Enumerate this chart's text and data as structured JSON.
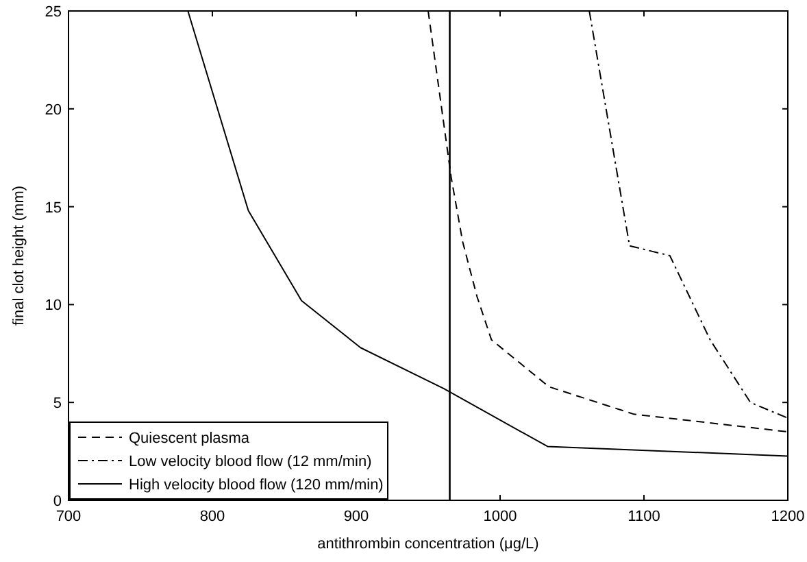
{
  "chart_data": {
    "type": "line",
    "xlabel": "antithrombin concentration (μg/L)",
    "ylabel": "final clot height (mm)",
    "xlim": [
      700,
      1200
    ],
    "ylim": [
      0,
      25
    ],
    "xticks": [
      700,
      800,
      900,
      1000,
      1100,
      1200
    ],
    "yticks": [
      0,
      5,
      10,
      15,
      20,
      25
    ],
    "grid": false,
    "legend": "bottom left",
    "marker": "none",
    "series": [
      {
        "name": "Quiescent plasma",
        "color": "#000000",
        "line_style": "dashed",
        "x": [
          950,
          966,
          974,
          984,
          994,
          1034,
          1093,
          1200
        ],
        "values": [
          25,
          16.5,
          13.2,
          10.4,
          8.2,
          5.8,
          4.4,
          3.5
        ]
      },
      {
        "name": "Low velocity blood flow (12 mm/min)",
        "color": "#000000",
        "line_style": "dashdot",
        "x": [
          1062,
          1090,
          1118,
          1146,
          1174,
          1200
        ],
        "values": [
          25,
          13.0,
          12.5,
          8.2,
          5.0,
          4.2
        ]
      },
      {
        "name": "High velocity blood flow (120 mm/min)",
        "color": "#000000",
        "line_style": "solid",
        "x": [
          783,
          825,
          862,
          903,
          961,
          1033,
          1200
        ],
        "values": [
          25,
          14.8,
          10.2,
          7.8,
          5.7,
          2.75,
          2.26
        ]
      }
    ],
    "ref_lines": [
      {
        "axis": "x",
        "value": 965,
        "color": "#000000",
        "line_style": "solid"
      }
    ]
  }
}
